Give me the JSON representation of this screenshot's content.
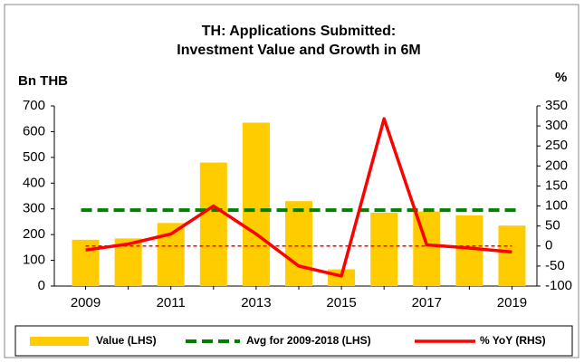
{
  "chart_data": {
    "type": "bar_line",
    "title": "TH: Applications Submitted:",
    "subtitle": "Investment Value and Growth in  6M",
    "y_label": "Bn THB",
    "y2_label": "%",
    "categories": [
      "2009",
      null,
      "2011",
      null,
      "2013",
      null,
      "2015",
      null,
      "2017",
      null,
      "2019"
    ],
    "series": [
      {
        "name": "Value  (LHS)",
        "color": "#ffcc00",
        "type": "bar",
        "values": [
          180,
          185,
          245,
          480,
          635,
          330,
          65,
          285,
          290,
          275,
          235
        ]
      },
      {
        "name": "% YoY (RHS)",
        "color": "#ff0000",
        "type": "line",
        "axis": "y2",
        "values": [
          -10,
          5,
          30,
          100,
          30,
          -50,
          -75,
          318,
          3,
          -5,
          -15
        ]
      }
    ],
    "reference_lines": [
      {
        "name": "Avg for 2009-2018 (LHS)",
        "value": 295,
        "color": "#008000",
        "axis": "y",
        "legend": true
      },
      {
        "value": 0,
        "color": "#ff0000",
        "axis": "y2",
        "legend": false
      }
    ],
    "ylim": [
      0,
      700
    ],
    "yticks": [
      0,
      100,
      200,
      300,
      400,
      500,
      600,
      700
    ],
    "y2lim": [
      -100,
      350
    ],
    "y2ticks": [
      -100,
      -50,
      0,
      50,
      100,
      150,
      200,
      250,
      300,
      350
    ],
    "legend": "bottom"
  }
}
